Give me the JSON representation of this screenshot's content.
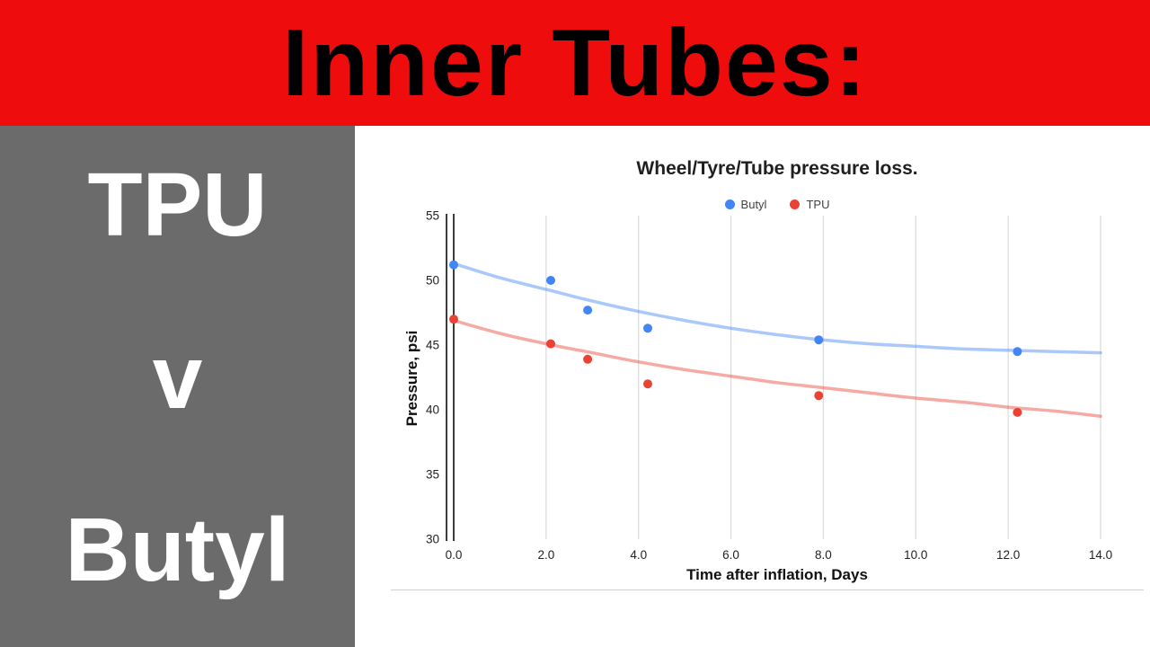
{
  "banner": {
    "title": "Inner Tubes:"
  },
  "sidebar": {
    "line1": "TPU",
    "line2": "v",
    "line3": "Butyl"
  },
  "colors": {
    "banner_bg": "#ee0c0c",
    "banner_text": "#000000",
    "sidebar_bg": "#6b6b6b",
    "sidebar_text": "#ffffff",
    "grid": "#dcdcdc",
    "axis": "#3c3c3c",
    "tick_text": "#222222",
    "butyl": "#4285f4",
    "tpu": "#ea4335"
  },
  "chart_data": {
    "type": "scatter",
    "title": "Wheel/Tyre/Tube pressure loss.",
    "xlabel": "Time after inflation, Days",
    "ylabel": "Pressure, psi",
    "xlim": [
      0,
      14
    ],
    "ylim": [
      30,
      55
    ],
    "x_ticks": [
      "0.0",
      "2.0",
      "4.0",
      "6.0",
      "8.0",
      "10.0",
      "12.0",
      "14.0"
    ],
    "y_ticks": [
      "30",
      "35",
      "40",
      "45",
      "50",
      "55"
    ],
    "grid": "vertical",
    "legend_position": "top",
    "series": [
      {
        "name": "Butyl",
        "color": "#4285f4",
        "points": [
          [
            0,
            51.2
          ],
          [
            2.1,
            50.0
          ],
          [
            2.9,
            47.7
          ],
          [
            4.2,
            46.3
          ],
          [
            7.9,
            45.4
          ],
          [
            12.2,
            44.5
          ]
        ],
        "trend": [
          [
            0,
            51.3
          ],
          [
            1,
            50.2
          ],
          [
            2,
            49.3
          ],
          [
            3,
            48.4
          ],
          [
            4,
            47.6
          ],
          [
            5,
            46.9
          ],
          [
            6,
            46.3
          ],
          [
            7,
            45.8
          ],
          [
            8,
            45.4
          ],
          [
            9,
            45.1
          ],
          [
            10,
            44.9
          ],
          [
            11,
            44.7
          ],
          [
            12,
            44.6
          ],
          [
            13,
            44.5
          ],
          [
            14,
            44.4
          ]
        ]
      },
      {
        "name": "TPU",
        "color": "#ea4335",
        "points": [
          [
            0,
            47.0
          ],
          [
            2.1,
            45.1
          ],
          [
            2.9,
            43.9
          ],
          [
            4.2,
            42.0
          ],
          [
            7.9,
            41.1
          ],
          [
            12.2,
            39.8
          ]
        ],
        "trend": [
          [
            0,
            46.9
          ],
          [
            1,
            45.9
          ],
          [
            2,
            45.1
          ],
          [
            3,
            44.4
          ],
          [
            4,
            43.7
          ],
          [
            5,
            43.1
          ],
          [
            6,
            42.6
          ],
          [
            7,
            42.1
          ],
          [
            8,
            41.7
          ],
          [
            9,
            41.3
          ],
          [
            10,
            40.9
          ],
          [
            11,
            40.6
          ],
          [
            12,
            40.2
          ],
          [
            13,
            39.9
          ],
          [
            14,
            39.5
          ]
        ]
      }
    ]
  }
}
